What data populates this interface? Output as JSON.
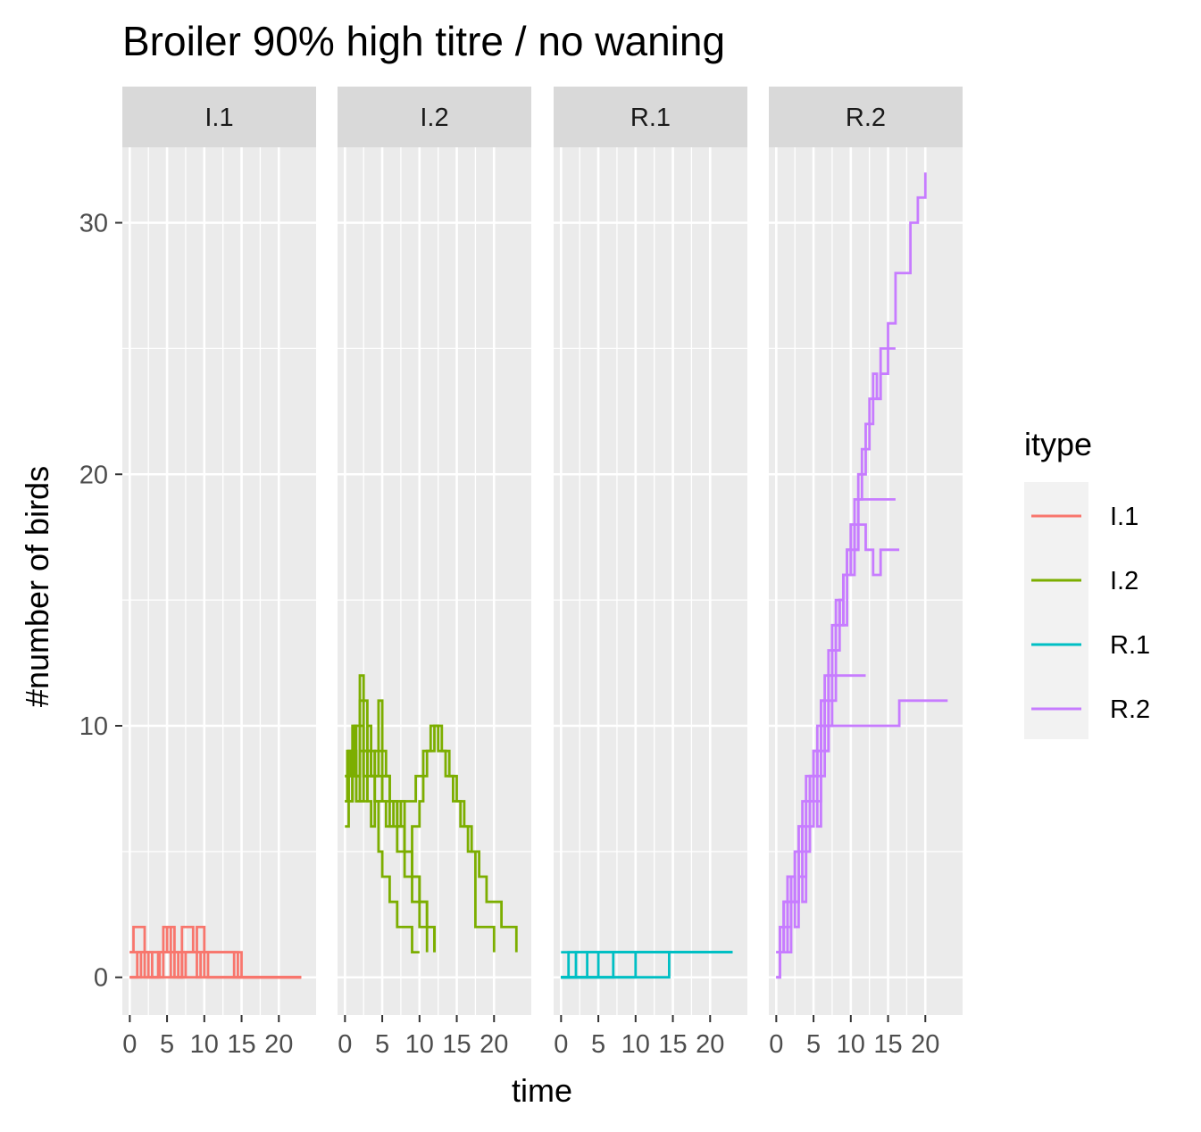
{
  "chart_data": {
    "type": "line",
    "step": true,
    "title": "Broiler 90% high titre / no waning",
    "xlabel": "time",
    "ylabel": "#number of birds",
    "xlim": [
      -1,
      25
    ],
    "ylim": [
      -1.5,
      33
    ],
    "x_ticks": [
      0,
      5,
      10,
      15,
      20
    ],
    "x_tick_labels": [
      "0",
      "5",
      "10",
      "15",
      "20"
    ],
    "y_ticks": [
      0,
      10,
      20,
      30
    ],
    "y_tick_labels": [
      "0",
      "10",
      "20",
      "30"
    ],
    "grid": true,
    "panel_background": "#ebebeb",
    "strip_background": "#d9d9d9",
    "legend": {
      "title": "itype",
      "position": "right",
      "entries": [
        {
          "label": "I.1",
          "color": "#f8766d"
        },
        {
          "label": "I.2",
          "color": "#7cae00"
        },
        {
          "label": "R.1",
          "color": "#00bfc4"
        },
        {
          "label": "R.2",
          "color": "#c77cff"
        }
      ]
    },
    "facets": [
      {
        "label": "I.1",
        "color": "#f8766d",
        "series": [
          {
            "x": [
              0,
              0.5,
              2,
              3,
              3.8,
              5,
              6.5,
              7,
              8,
              15,
              23
            ],
            "y": [
              1,
              2,
              1,
              0,
              1,
              1,
              0,
              1,
              1,
              0,
              0
            ]
          },
          {
            "x": [
              0,
              1.5,
              2.5,
              4.5,
              5.5,
              7,
              9.5,
              10.5,
              12,
              23
            ],
            "y": [
              0,
              1,
              0,
              2,
              1,
              0,
              1,
              0,
              0,
              0
            ]
          },
          {
            "x": [
              0,
              2,
              4,
              5.5,
              7,
              8.5,
              9.5,
              14,
              23
            ],
            "y": [
              1,
              0,
              1,
              0,
              2,
              1,
              1,
              0,
              0
            ]
          },
          {
            "x": [
              0,
              1,
              3,
              5,
              6,
              9,
              10,
              14.5,
              23
            ],
            "y": [
              0,
              1,
              1,
              2,
              1,
              2,
              0,
              0,
              0
            ]
          },
          {
            "x": [
              0,
              3.5,
              6,
              7.5,
              9,
              11,
              14.5,
              23
            ],
            "y": [
              1,
              1,
              0,
              1,
              1,
              1,
              0,
              0
            ]
          },
          {
            "x": [
              0,
              1,
              7,
              9,
              10,
              23
            ],
            "y": [
              0,
              0,
              1,
              0,
              0,
              0
            ]
          }
        ]
      },
      {
        "label": "I.2",
        "color": "#7cae00",
        "series": [
          {
            "x": [
              0,
              0.5,
              1,
              1.5,
              2,
              2.5,
              3,
              3.5,
              4,
              4.5,
              5,
              6,
              7,
              8,
              9,
              10
            ],
            "y": [
              8,
              9,
              10,
              8,
              11,
              9,
              7,
              6,
              7,
              5,
              4,
              3,
              2,
              2,
              1,
              1
            ]
          },
          {
            "x": [
              0,
              0.3,
              0.8,
              1.3,
              2,
              2.5,
              3,
              3.5,
              4,
              5,
              6,
              7,
              8,
              9,
              10,
              11
            ],
            "y": [
              7,
              9,
              8,
              10,
              12,
              11,
              9,
              8,
              7,
              7,
              6,
              5,
              4,
              3,
              2,
              1
            ]
          },
          {
            "x": [
              0,
              0.5,
              1,
              1.5,
              2,
              2.5,
              3,
              4,
              4.5,
              5,
              5.5,
              6,
              7,
              8,
              9,
              10,
              11,
              12
            ],
            "y": [
              8,
              7,
              9,
              8,
              10,
              8,
              9,
              8,
              11,
              9,
              8,
              7,
              6,
              5,
              4,
              3,
              2,
              1
            ]
          },
          {
            "x": [
              0,
              0.5,
              1,
              1.5,
              2,
              2.5,
              3,
              3.5,
              4,
              4.5,
              5,
              6,
              7,
              7.5,
              8,
              9,
              10,
              11,
              12
            ],
            "y": [
              6,
              8,
              9,
              7,
              9,
              8,
              10,
              8,
              9,
              9,
              8,
              7,
              6,
              7,
              5,
              4,
              3,
              2,
              1
            ]
          },
          {
            "x": [
              0,
              1,
              1.5,
              2.5,
              3.5,
              4.5,
              5,
              5.5,
              6.5,
              7.5,
              8.5,
              9.5,
              10.5,
              11.5,
              12.5,
              13.5,
              14.5,
              15.5,
              16.5,
              17.5,
              20
            ],
            "y": [
              7,
              8,
              7,
              9,
              8,
              8,
              7,
              6,
              7,
              7,
              7,
              8,
              9,
              10,
              9,
              8,
              7,
              6,
              5,
              2,
              1
            ]
          },
          {
            "x": [
              0,
              1,
              2,
              3,
              4,
              5,
              6,
              7,
              8,
              9,
              10,
              10.5,
              11,
              12,
              13,
              14,
              15,
              16,
              17,
              18,
              19,
              21,
              23
            ],
            "y": [
              7,
              8,
              7,
              8,
              7,
              8,
              7,
              6,
              5,
              6,
              7,
              8,
              9,
              10,
              9,
              8,
              7,
              6,
              5,
              4,
              3,
              2,
              1
            ]
          }
        ]
      },
      {
        "label": "R.1",
        "color": "#00bfc4",
        "series": [
          {
            "x": [
              0,
              1,
              23
            ],
            "y": [
              0,
              1,
              1
            ]
          },
          {
            "x": [
              0,
              2,
              23
            ],
            "y": [
              0,
              1,
              1
            ]
          },
          {
            "x": [
              0,
              3.5,
              23
            ],
            "y": [
              0,
              1,
              1
            ]
          },
          {
            "x": [
              0,
              5,
              23
            ],
            "y": [
              0,
              1,
              1
            ]
          },
          {
            "x": [
              0,
              7,
              23
            ],
            "y": [
              0,
              1,
              1
            ]
          },
          {
            "x": [
              0,
              10,
              23
            ],
            "y": [
              0,
              1,
              1
            ]
          },
          {
            "x": [
              0,
              14.5,
              23
            ],
            "y": [
              0,
              1,
              1
            ]
          },
          {
            "x": [
              0,
              23
            ],
            "y": [
              1,
              1
            ]
          }
        ]
      },
      {
        "label": "R.2",
        "color": "#c77cff",
        "series": [
          {
            "x": [
              0,
              0.5,
              1,
              1.5,
              2,
              2.5,
              3,
              3.5,
              4,
              4.5,
              5,
              5.5,
              6,
              6.5,
              7,
              8,
              10,
              12,
              14,
              16.5,
              23
            ],
            "y": [
              1,
              2,
              3,
              4,
              3,
              5,
              6,
              7,
              8,
              7,
              8,
              9,
              10,
              9,
              10,
              10,
              10,
              10,
              10,
              11,
              11
            ]
          },
          {
            "x": [
              0,
              0.5,
              1,
              1.5,
              2,
              2.5,
              3,
              3.5,
              4,
              4.5,
              5,
              5.5,
              6,
              6.5,
              7,
              7.5,
              8,
              8.5,
              9,
              9.5,
              10,
              10.5,
              11,
              11.5,
              12,
              12.5,
              13,
              13.5,
              14,
              15,
              16,
              17,
              18,
              19,
              20
            ],
            "y": [
              0,
              2,
              3,
              2,
              4,
              3,
              6,
              5,
              7,
              8,
              9,
              8,
              11,
              12,
              13,
              14,
              15,
              14,
              16,
              17,
              18,
              19,
              20,
              21,
              22,
              23,
              24,
              23,
              25,
              26,
              28,
              28,
              30,
              31,
              32
            ]
          },
          {
            "x": [
              0,
              0.5,
              1,
              1.5,
              2,
              2.5,
              3,
              3.5,
              4,
              4.5,
              5,
              5.5,
              6,
              6.5,
              7,
              7.5,
              8,
              8.5,
              9,
              9.5,
              10,
              10.5,
              11,
              11.5,
              12,
              12.5,
              13,
              14,
              15,
              16
            ],
            "y": [
              1,
              2,
              3,
              4,
              3,
              5,
              4,
              6,
              7,
              8,
              9,
              10,
              11,
              10,
              12,
              13,
              14,
              15,
              16,
              17,
              18,
              17,
              19,
              20,
              21,
              22,
              23,
              24,
              25,
              25
            ]
          },
          {
            "x": [
              0,
              0.5,
              1,
              1.5,
              2,
              2.5,
              3,
              3.5,
              4,
              4.5,
              5,
              5.5,
              6,
              6.5,
              7,
              7.5,
              8,
              8.5,
              9,
              9.5,
              10,
              10.5,
              11,
              12,
              13,
              14,
              16
            ],
            "y": [
              0,
              1,
              2,
              3,
              4,
              3,
              5,
              6,
              5,
              7,
              8,
              9,
              10,
              11,
              12,
              13,
              14,
              15,
              14,
              16,
              17,
              18,
              19,
              19,
              19,
              19,
              19
            ]
          },
          {
            "x": [
              0,
              0.5,
              1,
              1.5,
              2,
              2.5,
              3,
              3.5,
              4,
              4.5,
              5,
              5.5,
              6,
              6.5,
              7,
              7.5,
              8,
              8.5,
              9,
              9.5,
              10,
              10.5,
              11,
              12,
              13,
              14,
              16.5
            ],
            "y": [
              1,
              2,
              1,
              3,
              4,
              3,
              5,
              4,
              6,
              7,
              8,
              7,
              9,
              10,
              11,
              12,
              13,
              15,
              16,
              17,
              16,
              17,
              18,
              17,
              16,
              17,
              17
            ]
          },
          {
            "x": [
              0,
              0.5,
              1,
              1.5,
              2,
              2.5,
              3,
              3.5,
              4,
              4.5,
              5,
              5.5,
              6,
              6.5,
              7,
              7.5,
              8,
              9,
              10,
              11,
              12
            ],
            "y": [
              0,
              1,
              2,
              1,
              3,
              2,
              4,
              3,
              5,
              6,
              7,
              6,
              8,
              9,
              10,
              11,
              12,
              12,
              12,
              12,
              12
            ]
          }
        ]
      }
    ]
  }
}
